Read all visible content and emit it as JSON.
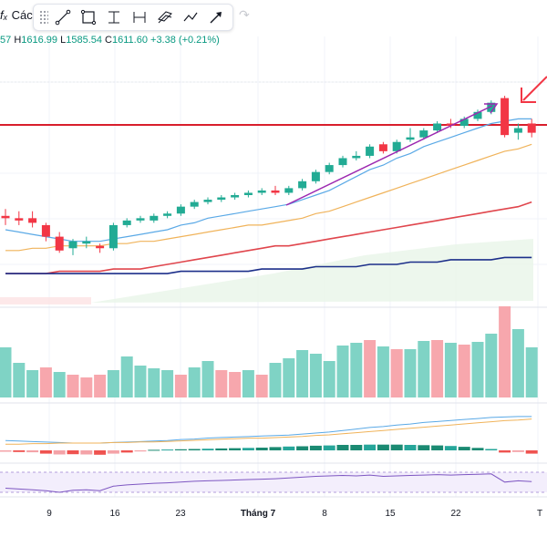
{
  "header": {
    "fx_symbol": "fₓ",
    "indicator_label": "Các",
    "ohlc": {
      "open_partial": "57",
      "high_key": "H",
      "high": "1616.99",
      "low_key": "L",
      "low": "1585.54",
      "close_key": "C",
      "close": "1611.60",
      "change": "+3.38 (+0.21%)"
    }
  },
  "toolbar": {
    "tools": [
      {
        "name": "trend-line-icon"
      },
      {
        "name": "rectangle-icon"
      },
      {
        "name": "vertical-range-icon"
      },
      {
        "name": "horizontal-range-icon"
      },
      {
        "name": "parallel-channel-icon"
      },
      {
        "name": "path-icon"
      },
      {
        "name": "arrow-icon"
      }
    ],
    "undo_symbol": "↷"
  },
  "colors": {
    "up": "#22ab94",
    "down": "#f23645",
    "up_volume": "#7fd3c5",
    "down_volume": "#f7a7ad",
    "ma_fast": "#5aa9e6",
    "ma_mid": "#f0b35a",
    "ma_slow": "#e0464d",
    "ma_long": "#1c2f8a",
    "annotation_purple": "#9c27b0",
    "resistance": "#d81e2c"
  },
  "chart_data": {
    "type": "candlestick",
    "x_ticks": [
      "9",
      "16",
      "23",
      "Tháng 7",
      "8",
      "15",
      "22",
      "T"
    ],
    "candles": [
      {
        "o": 1566,
        "h": 1569,
        "l": 1562,
        "c": 1565
      },
      {
        "o": 1565,
        "h": 1568,
        "l": 1562,
        "c": 1564
      },
      {
        "o": 1565,
        "h": 1568,
        "l": 1561,
        "c": 1563
      },
      {
        "o": 1562,
        "h": 1563,
        "l": 1555,
        "c": 1557
      },
      {
        "o": 1557,
        "h": 1559,
        "l": 1550,
        "c": 1551
      },
      {
        "o": 1552,
        "h": 1556,
        "l": 1549,
        "c": 1555
      },
      {
        "o": 1554,
        "h": 1557,
        "l": 1552,
        "c": 1555
      },
      {
        "o": 1553,
        "h": 1554,
        "l": 1550,
        "c": 1552
      },
      {
        "o": 1552,
        "h": 1563,
        "l": 1551,
        "c": 1562
      },
      {
        "o": 1562,
        "h": 1565,
        "l": 1561,
        "c": 1564
      },
      {
        "o": 1564,
        "h": 1566,
        "l": 1563,
        "c": 1565
      },
      {
        "o": 1564,
        "h": 1567,
        "l": 1563,
        "c": 1566
      },
      {
        "o": 1566,
        "h": 1568,
        "l": 1565,
        "c": 1567
      },
      {
        "o": 1567,
        "h": 1571,
        "l": 1566,
        "c": 1570
      },
      {
        "o": 1570,
        "h": 1573,
        "l": 1569,
        "c": 1572
      },
      {
        "o": 1572,
        "h": 1574,
        "l": 1571,
        "c": 1573
      },
      {
        "o": 1573,
        "h": 1575,
        "l": 1572,
        "c": 1574
      },
      {
        "o": 1574,
        "h": 1576,
        "l": 1573,
        "c": 1575
      },
      {
        "o": 1575,
        "h": 1577,
        "l": 1574,
        "c": 1576
      },
      {
        "o": 1576,
        "h": 1578,
        "l": 1575,
        "c": 1577
      },
      {
        "o": 1577,
        "h": 1579,
        "l": 1575,
        "c": 1576
      },
      {
        "o": 1576,
        "h": 1579,
        "l": 1575,
        "c": 1578
      },
      {
        "o": 1578,
        "h": 1582,
        "l": 1577,
        "c": 1581
      },
      {
        "o": 1581,
        "h": 1586,
        "l": 1580,
        "c": 1585
      },
      {
        "o": 1585,
        "h": 1589,
        "l": 1584,
        "c": 1588
      },
      {
        "o": 1588,
        "h": 1592,
        "l": 1587,
        "c": 1591
      },
      {
        "o": 1591,
        "h": 1594,
        "l": 1590,
        "c": 1592
      },
      {
        "o": 1592,
        "h": 1597,
        "l": 1591,
        "c": 1596
      },
      {
        "o": 1597,
        "h": 1598,
        "l": 1593,
        "c": 1594
      },
      {
        "o": 1594,
        "h": 1599,
        "l": 1593,
        "c": 1598
      },
      {
        "o": 1599,
        "h": 1604,
        "l": 1598,
        "c": 1600
      },
      {
        "o": 1600,
        "h": 1604,
        "l": 1599,
        "c": 1603
      },
      {
        "o": 1603,
        "h": 1607,
        "l": 1602,
        "c": 1606
      },
      {
        "o": 1606,
        "h": 1608,
        "l": 1604,
        "c": 1605
      },
      {
        "o": 1605,
        "h": 1609,
        "l": 1604,
        "c": 1608
      },
      {
        "o": 1608,
        "h": 1612,
        "l": 1607,
        "c": 1611
      },
      {
        "o": 1611,
        "h": 1616,
        "l": 1610,
        "c": 1615
      },
      {
        "o": 1617,
        "h": 1618,
        "l": 1600,
        "c": 1601
      },
      {
        "o": 1602,
        "h": 1606,
        "l": 1599,
        "c": 1604
      },
      {
        "o": 1606,
        "h": 1608,
        "l": 1600,
        "c": 1602
      }
    ],
    "volume": [
      55,
      38,
      30,
      33,
      28,
      25,
      22,
      25,
      30,
      45,
      35,
      32,
      30,
      25,
      33,
      40,
      30,
      28,
      30,
      25,
      38,
      43,
      52,
      48,
      40,
      57,
      60,
      63,
      56,
      53,
      53,
      62,
      63,
      60,
      58,
      61,
      70,
      100,
      75,
      55
    ],
    "volume_up": [
      true,
      true,
      true,
      false,
      true,
      false,
      false,
      false,
      true,
      true,
      true,
      true,
      true,
      false,
      true,
      true,
      false,
      false,
      true,
      false,
      true,
      true,
      true,
      true,
      true,
      true,
      true,
      false,
      true,
      false,
      true,
      true,
      false,
      true,
      false,
      true,
      true,
      false,
      true,
      true
    ],
    "ma_fast": [
      1560,
      1559,
      1558,
      1557,
      1556,
      1555,
      1555,
      1555,
      1556,
      1557,
      1558,
      1559,
      1560,
      1562,
      1563,
      1565,
      1566,
      1567,
      1568,
      1569,
      1570,
      1571,
      1573,
      1575,
      1577,
      1580,
      1583,
      1586,
      1588,
      1591,
      1593,
      1596,
      1598,
      1600,
      1602,
      1604,
      1606,
      1607,
      1608,
      1608
    ],
    "ma_mid": [
      1551,
      1551,
      1552,
      1552,
      1553,
      1553,
      1553,
      1553,
      1554,
      1554,
      1555,
      1555,
      1556,
      1557,
      1558,
      1559,
      1560,
      1561,
      1562,
      1562,
      1563,
      1564,
      1565,
      1567,
      1568,
      1570,
      1572,
      1574,
      1576,
      1578,
      1580,
      1582,
      1584,
      1586,
      1588,
      1590,
      1592,
      1594,
      1595,
      1597
    ],
    "ma_slow": [
      1541,
      1541,
      1541,
      1541,
      1542,
      1542,
      1542,
      1542,
      1543,
      1543,
      1543,
      1544,
      1545,
      1546,
      1547,
      1548,
      1549,
      1550,
      1551,
      1552,
      1553,
      1553,
      1554,
      1555,
      1556,
      1557,
      1558,
      1559,
      1560,
      1561,
      1562,
      1563,
      1564,
      1565,
      1566,
      1567,
      1568,
      1569,
      1570,
      1572
    ],
    "ma_long": [
      1541,
      1541,
      1541,
      1541,
      1541,
      1541,
      1541,
      1541,
      1541,
      1541,
      1541,
      1541,
      1541,
      1542,
      1542,
      1542,
      1542,
      1542,
      1542,
      1543,
      1543,
      1543,
      1543,
      1544,
      1544,
      1544,
      1544,
      1545,
      1545,
      1545,
      1546,
      1546,
      1546,
      1547,
      1547,
      1547,
      1547,
      1548,
      1548,
      1548
    ],
    "macd_hist": [
      -0.5,
      -0.6,
      -0.7,
      -1.2,
      -1.5,
      -1.4,
      -1.5,
      -1.6,
      -1.2,
      -0.8,
      -0.4,
      0.2,
      0.3,
      0.4,
      0.5,
      0.6,
      0.7,
      0.8,
      0.9,
      1.0,
      1.2,
      1.4,
      1.5,
      1.7,
      1.8,
      2.0,
      2.0,
      2.1,
      2.1,
      2.1,
      2.0,
      1.9,
      1.8,
      1.6,
      1.3,
      0.9,
      0.5,
      -0.8,
      -0.6,
      -1.2
    ],
    "rsi": [
      40,
      38,
      36,
      34,
      30,
      35,
      36,
      34,
      45,
      48,
      50,
      52,
      53,
      55,
      57,
      58,
      59,
      60,
      61,
      62,
      63,
      65,
      67,
      69,
      70,
      71,
      70,
      72,
      69,
      70,
      71,
      72,
      73,
      72,
      73,
      74,
      75,
      55,
      58,
      56
    ]
  }
}
